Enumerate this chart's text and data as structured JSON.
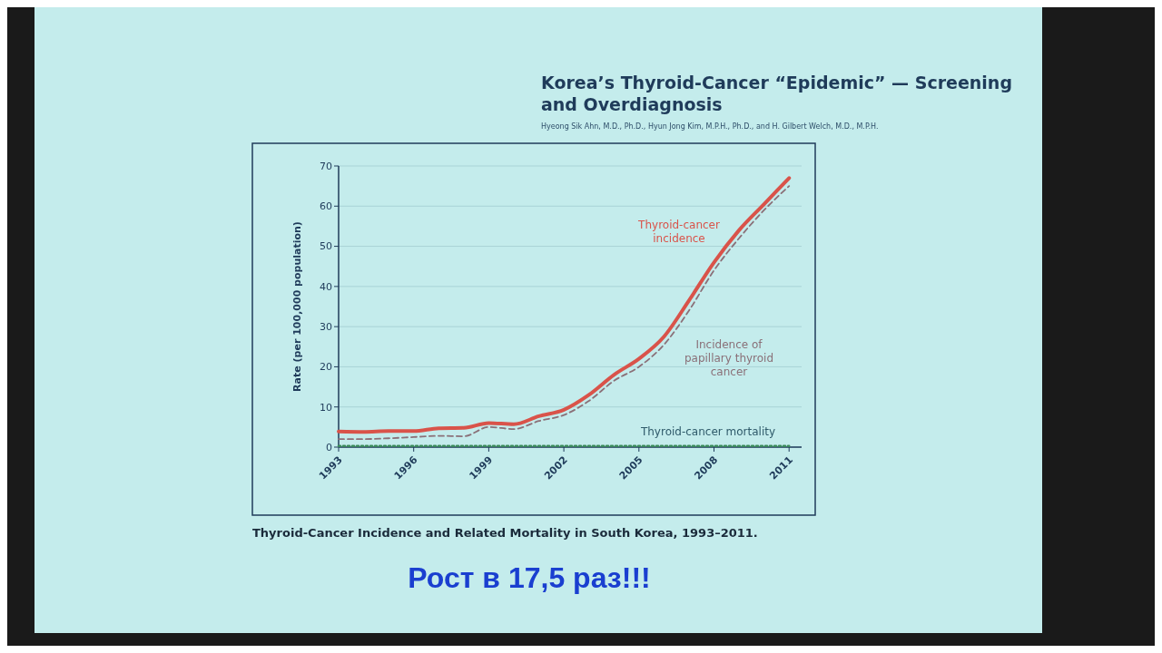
{
  "chart_data": {
    "type": "line",
    "title": "Korea’s Thyroid-Cancer “Epidemic” — Screening and Overdiagnosis",
    "subtitle": "Hyeong Sik Ahn, M.D., Ph.D., Hyun Jong Kim, M.P.H., Ph.D., and H. Gilbert Welch, M.D., M.P.H.",
    "ylabel": "Rate (per 100,000 population)",
    "x": [
      1993,
      1994,
      1995,
      1996,
      1997,
      1998,
      1999,
      2000,
      2001,
      2002,
      2003,
      2004,
      2005,
      2006,
      2007,
      2008,
      2009,
      2010,
      2011
    ],
    "series": [
      {
        "name": "Thyroid-cancer incidence",
        "color": "#d9534a",
        "line_style": "solid",
        "values": [
          3.9,
          3.8,
          4.0,
          4.0,
          4.7,
          4.8,
          6.0,
          5.7,
          7.7,
          9.3,
          13.0,
          18.0,
          22.0,
          27.5,
          36.5,
          46.0,
          54.0,
          60.5,
          67.0
        ]
      },
      {
        "name": "Incidence of papillary thyroid cancer",
        "color": "#8a7078",
        "line_style": "dashed",
        "values": [
          2.0,
          2.0,
          2.2,
          2.5,
          2.8,
          2.7,
          5.0,
          4.5,
          6.5,
          8.0,
          11.5,
          16.5,
          20.0,
          25.5,
          34.0,
          44.0,
          52.0,
          59.0,
          65.0
        ]
      },
      {
        "name": "Thyroid-cancer mortality",
        "color": "#3a8a5a",
        "line_style": "dotted",
        "values": [
          0.3,
          0.3,
          0.3,
          0.3,
          0.3,
          0.3,
          0.3,
          0.3,
          0.3,
          0.3,
          0.3,
          0.3,
          0.3,
          0.3,
          0.3,
          0.3,
          0.3,
          0.3,
          0.3
        ]
      }
    ],
    "xlim": [
      1993,
      2011.5
    ],
    "xticks": [
      1993,
      1996,
      1999,
      2002,
      2005,
      2008,
      2011
    ],
    "ylim": [
      0,
      70
    ],
    "yticks": [
      0,
      10,
      20,
      30,
      40,
      50,
      60,
      70
    ],
    "grid": "y",
    "annotations": [
      "Thyroid-Cancer Incidence and Related Mortality in South Korea, 1993–2011.",
      "Рост в 17,5 раз!!!"
    ]
  }
}
